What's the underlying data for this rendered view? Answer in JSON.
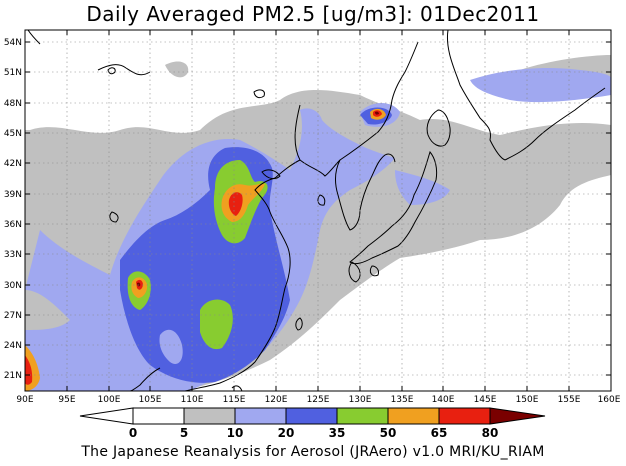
{
  "map": {
    "title": "Daily Averaged PM2.5 [ug/m3]: 01Dec2011",
    "footer": "The Japanese Reanalysis for Aerosol (JRAero) v1.0 MRI/KU_RIAM",
    "lon_range": [
      90,
      160
    ],
    "lat_range": [
      19.5,
      55.5
    ],
    "lon_ticks": [
      "90E",
      "95E",
      "100E",
      "105E",
      "110E",
      "115E",
      "120E",
      "125E",
      "130E",
      "135E",
      "140E",
      "145E",
      "150E",
      "155E",
      "160E"
    ],
    "lat_ticks": [
      "21N",
      "24N",
      "27N",
      "30N",
      "33N",
      "36N",
      "39N",
      "42N",
      "45N",
      "48N",
      "51N",
      "54N"
    ],
    "colors": {
      "lt5": "#ffffff",
      "c5_10": "#c0c0c0",
      "c10_20": "#a0a8f0",
      "c20_35": "#5060e0",
      "c35_50": "#88cc30",
      "c50_65": "#f0a020",
      "c65_80": "#e82010",
      "gt80": "#7a0000"
    }
  },
  "colorbar": {
    "labels": [
      "0",
      "5",
      "10",
      "20",
      "35",
      "50",
      "65",
      "80"
    ]
  }
}
